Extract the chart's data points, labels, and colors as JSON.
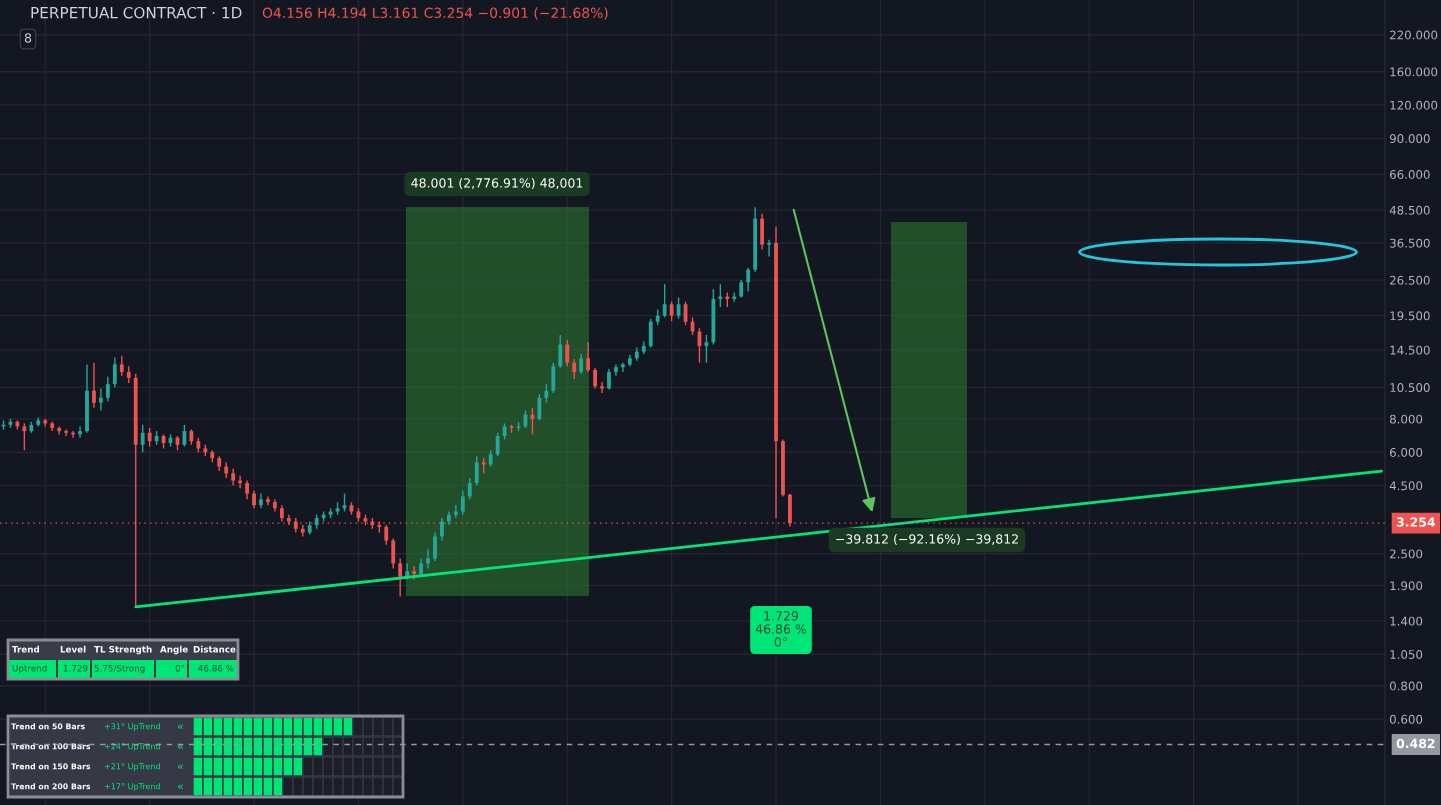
{
  "chart_data": {
    "type": "candlestick",
    "title": "PERPETUAL CONTRACT · 1D",
    "log": true,
    "grid": true,
    "tick_labels": "y",
    "ylim": [
      0.286,
      297
    ],
    "yticks": [
      {
        "value": 0.6,
        "label": "0.600"
      },
      {
        "value": 0.8,
        "label": "0.800"
      },
      {
        "value": 1.05,
        "label": "1.050"
      },
      {
        "value": 1.4,
        "label": "1.400"
      },
      {
        "value": 1.9,
        "label": "1.900"
      },
      {
        "value": 2.5,
        "label": "2.500"
      },
      {
        "value": 4.5,
        "label": "4.500"
      },
      {
        "value": 6,
        "label": "6.000"
      },
      {
        "value": 8,
        "label": "8.000"
      },
      {
        "value": 10.5,
        "label": "10.500"
      },
      {
        "value": 14.5,
        "label": "14.500"
      },
      {
        "value": 19.5,
        "label": "19.500"
      },
      {
        "value": 26.5,
        "label": "26.500"
      },
      {
        "value": 36.5,
        "label": "36.500"
      },
      {
        "value": 48.5,
        "label": "48.500"
      },
      {
        "value": 66,
        "label": "66.000"
      },
      {
        "value": 90,
        "label": "90.000"
      },
      {
        "value": 120,
        "label": "120.000"
      },
      {
        "value": 160,
        "label": "160.000"
      },
      {
        "value": 220,
        "label": "220.000"
      }
    ],
    "colors": [
      "#26a69a",
      "#26a69a",
      "#ef5350",
      "#ef5350",
      "#26a69a",
      "#26a69a",
      "#ef5350",
      "#ef5350",
      "#ef5350",
      "#ef5350",
      "#ef5350",
      "#26a69a",
      "#26a69a",
      "#ef5350",
      "#26a69a",
      "#26a69a",
      "#26a69a",
      "#ef5350",
      "#ef5350",
      "#ef5350",
      "#26a69a",
      "#ef5350",
      "#26a69a",
      "#ef5350",
      "#26a69a",
      "#ef5350",
      "#26a69a",
      "#ef5350",
      "#ef5350",
      "#ef5350",
      "#ef5350",
      "#ef5350",
      "#ef5350",
      "#ef5350",
      "#ef5350",
      "#ef5350",
      "#ef5350",
      "#26a69a",
      "#ef5350",
      "#ef5350",
      "#ef5350",
      "#ef5350",
      "#ef5350",
      "#ef5350",
      "#26a69a",
      "#26a69a",
      "#26a69a",
      "#26a69a",
      "#26a69a",
      "#26a69a",
      "#ef5350",
      "#ef5350",
      "#ef5350",
      "#ef5350",
      "#ef5350",
      "#ef5350",
      "#ef5350",
      "#ef5350",
      "#26a69a",
      "#ef5350",
      "#26a69a",
      "#26a69a",
      "#26a69a",
      "#26a69a",
      "#26a69a",
      "#26a69a",
      "#26a69a",
      "#26a69a",
      "#26a69a",
      "#ef5350",
      "#26a69a",
      "#26a69a",
      "#26a69a",
      "#ef5350",
      "#26a69a",
      "#26a69a",
      "#ef5350",
      "#26a69a",
      "#26a69a",
      "#26a69a",
      "#26a69a",
      "#ef5350",
      "#ef5350",
      "#26a69a",
      "#ef5350",
      "#ef5350",
      "#ef5350",
      "#26a69a",
      "#26a69a",
      "#26a69a",
      "#26a69a",
      "#26a69a",
      "#26a69a",
      "#26a69a",
      "#26a69a",
      "#26a69a",
      "#ef5350",
      "#26a69a",
      "#ef5350",
      "#ef5350",
      "#ef5350",
      "#26a69a",
      "#26a69a",
      "#26a69a",
      "#ef5350",
      "#26a69a",
      "#26a69a",
      "#26a69a",
      "#26a69a",
      "#ef5350",
      "#26a69a",
      "#ef5350",
      "#ef5350",
      "#ef5350",
      null,
      null,
      null,
      null,
      null,
      null,
      null,
      null,
      null,
      null,
      null,
      null,
      null,
      null,
      null,
      null,
      null,
      null,
      null,
      null,
      null,
      null,
      null,
      null,
      null,
      null,
      null,
      null,
      null,
      null,
      null,
      null,
      null,
      null,
      null,
      null,
      null,
      null,
      null,
      null,
      null,
      null,
      null,
      null,
      null,
      null,
      null,
      null,
      null,
      null,
      null,
      null,
      null,
      null,
      null,
      null,
      null,
      null,
      null,
      null,
      null,
      null,
      null,
      null,
      null,
      null,
      null,
      null,
      null,
      null,
      null,
      null,
      null,
      null,
      null,
      null,
      null,
      null,
      null,
      null,
      null,
      null,
      null,
      null,
      null
    ],
    "categories": [
      null,
      null,
      null,
      null,
      null,
      null,
      null,
      null,
      null,
      null,
      null,
      null,
      null,
      null,
      null,
      null,
      null,
      null,
      null,
      null,
      null,
      null,
      null,
      null,
      null,
      null,
      null,
      null,
      null,
      null,
      null,
      null,
      null,
      null,
      null,
      null,
      null,
      null,
      null,
      null,
      null,
      null,
      null,
      null,
      null,
      null,
      null,
      null,
      null,
      null,
      null,
      null,
      null,
      null,
      null,
      null,
      null,
      null,
      null,
      null,
      null,
      null,
      null,
      null,
      null,
      null,
      null,
      null,
      null,
      null,
      null,
      null,
      null,
      null,
      null,
      null,
      null,
      null,
      null,
      null,
      null,
      null,
      null,
      null,
      null,
      null,
      null,
      null,
      null,
      null,
      null,
      null,
      null,
      null,
      null,
      null,
      null,
      null,
      null,
      null,
      null,
      null,
      null,
      null,
      null,
      null,
      null,
      null,
      null,
      null,
      null,
      null,
      null,
      null,
      null,
      null,
      null,
      null,
      null,
      null,
      null,
      null,
      null,
      null,
      null,
      null,
      null,
      null,
      null,
      null,
      null,
      null,
      null,
      null,
      null,
      null,
      null,
      null,
      null,
      null,
      null,
      null,
      null,
      null,
      null,
      null,
      null,
      null,
      null,
      null,
      null,
      null,
      null,
      null,
      null,
      null,
      null,
      null,
      null,
      null,
      null,
      null,
      null,
      null,
      null,
      null,
      null,
      null,
      null,
      null,
      null,
      null,
      null,
      null,
      null,
      null,
      null,
      null,
      null,
      null,
      null,
      null,
      null,
      null,
      null,
      null,
      null,
      null,
      null,
      null,
      null,
      null,
      null,
      null,
      null,
      null,
      null,
      null,
      null
    ],
    "ohlc": [
      [
        7.5,
        7.9,
        7.3,
        7.6
      ],
      [
        7.6,
        8.0,
        7.4,
        7.8
      ],
      [
        7.8,
        7.9,
        7.3,
        7.5
      ],
      [
        7.5,
        7.7,
        6.1,
        7.2
      ],
      [
        7.2,
        7.8,
        7.1,
        7.6
      ],
      [
        7.6,
        8.1,
        7.5,
        7.9
      ],
      [
        7.9,
        8.0,
        7.5,
        7.7
      ],
      [
        7.7,
        7.8,
        7.2,
        7.4
      ],
      [
        7.4,
        7.5,
        7.0,
        7.2
      ],
      [
        7.2,
        7.3,
        6.9,
        7.1
      ],
      [
        7.1,
        7.2,
        6.8,
        7.0
      ],
      [
        7.0,
        7.5,
        6.8,
        7.2
      ],
      [
        7.2,
        12.8,
        7.1,
        10.2
      ],
      [
        10.2,
        13.0,
        8.8,
        9.2
      ],
      [
        9.2,
        10.4,
        8.6,
        9.6
      ],
      [
        9.6,
        11.5,
        9.3,
        10.8
      ],
      [
        10.8,
        13.6,
        10.5,
        12.8
      ],
      [
        12.8,
        13.8,
        11.6,
        12.0
      ],
      [
        12.0,
        12.6,
        10.9,
        11.4
      ],
      [
        11.4,
        11.8,
        1.58,
        6.4
      ],
      [
        6.4,
        7.6,
        6.0,
        7.1
      ],
      [
        7.1,
        7.4,
        6.3,
        6.6
      ],
      [
        6.6,
        7.2,
        6.4,
        6.9
      ],
      [
        6.9,
        7.0,
        6.2,
        6.5
      ],
      [
        6.5,
        7.0,
        6.3,
        6.8
      ],
      [
        6.8,
        6.9,
        6.1,
        6.4
      ],
      [
        6.4,
        7.6,
        6.3,
        7.2
      ],
      [
        7.2,
        7.3,
        6.4,
        6.6
      ],
      [
        6.6,
        6.8,
        6.0,
        6.2
      ],
      [
        6.2,
        6.4,
        5.8,
        6.0
      ],
      [
        6.0,
        6.1,
        5.5,
        5.7
      ],
      [
        5.7,
        5.8,
        5.1,
        5.3
      ],
      [
        5.3,
        5.5,
        4.8,
        5.0
      ],
      [
        5.0,
        5.2,
        4.5,
        4.7
      ],
      [
        4.7,
        4.9,
        4.4,
        4.6
      ],
      [
        4.6,
        4.7,
        4.0,
        4.2
      ],
      [
        4.2,
        4.3,
        3.7,
        3.8
      ],
      [
        3.8,
        4.2,
        3.7,
        4.0
      ],
      [
        4.0,
        4.1,
        3.8,
        3.9
      ],
      [
        3.9,
        4.0,
        3.6,
        3.7
      ],
      [
        3.7,
        3.8,
        3.3,
        3.4
      ],
      [
        3.4,
        3.5,
        3.2,
        3.3
      ],
      [
        3.3,
        3.4,
        3.0,
        3.1
      ],
      [
        3.1,
        3.2,
        2.9,
        3.0
      ],
      [
        3.0,
        3.3,
        2.95,
        3.2
      ],
      [
        3.2,
        3.5,
        3.1,
        3.4
      ],
      [
        3.4,
        3.6,
        3.3,
        3.5
      ],
      [
        3.5,
        3.7,
        3.4,
        3.6
      ],
      [
        3.6,
        3.9,
        3.5,
        3.7
      ],
      [
        3.7,
        4.2,
        3.6,
        3.8
      ],
      [
        3.8,
        3.9,
        3.5,
        3.6
      ],
      [
        3.6,
        3.7,
        3.3,
        3.4
      ],
      [
        3.4,
        3.5,
        3.2,
        3.3
      ],
      [
        3.3,
        3.4,
        3.1,
        3.2
      ],
      [
        3.2,
        3.3,
        3.0,
        3.15
      ],
      [
        3.15,
        3.2,
        2.7,
        2.8
      ],
      [
        2.8,
        2.85,
        2.2,
        2.3
      ],
      [
        2.3,
        2.4,
        1.729,
        2.05
      ],
      [
        2.05,
        2.3,
        2.0,
        2.15
      ],
      [
        2.15,
        2.25,
        2.0,
        2.1
      ],
      [
        2.1,
        2.4,
        2.05,
        2.3
      ],
      [
        2.3,
        2.6,
        2.2,
        2.4
      ],
      [
        2.4,
        3.0,
        2.35,
        2.9
      ],
      [
        2.9,
        3.4,
        2.8,
        3.3
      ],
      [
        3.3,
        3.6,
        3.2,
        3.5
      ],
      [
        3.5,
        3.8,
        3.4,
        3.6
      ],
      [
        3.6,
        4.3,
        3.5,
        4.1
      ],
      [
        4.1,
        4.8,
        4.0,
        4.6
      ],
      [
        4.6,
        5.8,
        4.5,
        5.5
      ],
      [
        5.5,
        5.7,
        5.0,
        5.4
      ],
      [
        5.4,
        6.1,
        5.3,
        5.9
      ],
      [
        5.9,
        7.1,
        5.8,
        6.9
      ],
      [
        6.9,
        7.7,
        6.7,
        7.5
      ],
      [
        7.5,
        7.6,
        7.1,
        7.4
      ],
      [
        7.4,
        7.8,
        7.2,
        7.5
      ],
      [
        7.5,
        8.6,
        7.4,
        8.3
      ],
      [
        8.3,
        8.8,
        7.0,
        8.0
      ],
      [
        8.0,
        9.9,
        7.9,
        9.6
      ],
      [
        9.6,
        10.8,
        9.2,
        10.2
      ],
      [
        10.2,
        13.0,
        10.0,
        12.6
      ],
      [
        12.6,
        16.5,
        12.4,
        15.2
      ],
      [
        15.2,
        15.8,
        12.6,
        13.0
      ],
      [
        13.0,
        13.4,
        11.3,
        12.0
      ],
      [
        12.0,
        14.0,
        11.8,
        13.5
      ],
      [
        13.5,
        15.5,
        12.0,
        12.2
      ],
      [
        12.2,
        12.4,
        10.4,
        10.6
      ],
      [
        10.6,
        11.0,
        10.0,
        10.4
      ],
      [
        10.4,
        12.3,
        10.3,
        12.0
      ],
      [
        12.0,
        12.8,
        11.6,
        12.5
      ],
      [
        12.5,
        13.0,
        12.0,
        12.8
      ],
      [
        12.8,
        13.9,
        12.6,
        13.5
      ],
      [
        13.5,
        14.8,
        13.2,
        14.3
      ],
      [
        14.3,
        15.6,
        14.0,
        15.0
      ],
      [
        15.0,
        19.0,
        14.8,
        18.5
      ],
      [
        18.5,
        20.5,
        18.0,
        19.5
      ],
      [
        19.5,
        25.6,
        19.2,
        21.5
      ],
      [
        21.5,
        22.0,
        18.6,
        19.5
      ],
      [
        19.5,
        22.8,
        19.0,
        21.5
      ],
      [
        21.5,
        22.0,
        18.0,
        18.5
      ],
      [
        18.5,
        19.2,
        16.5,
        17.0
      ],
      [
        17.0,
        17.5,
        13.0,
        15.0
      ],
      [
        15.0,
        16.5,
        13.0,
        15.5
      ],
      [
        15.5,
        24.5,
        15.2,
        22.5
      ],
      [
        22.5,
        25.6,
        21.0,
        23.0
      ],
      [
        23.0,
        23.8,
        21.0,
        22.5
      ],
      [
        22.5,
        23.8,
        22.0,
        23.0
      ],
      [
        23.0,
        26.5,
        22.8,
        26.0
      ],
      [
        26.0,
        29.5,
        24.0,
        29.0
      ],
      [
        29.0,
        49.73,
        28.5,
        45.0
      ],
      [
        45.0,
        47.0,
        34.5,
        36.0
      ],
      [
        36.0,
        37.5,
        32.5,
        36.5
      ],
      [
        36.5,
        42.0,
        3.4,
        6.6
      ],
      [
        6.6,
        6.7,
        4.1,
        4.155
      ],
      [
        4.156,
        4.194,
        3.161,
        3.254
      ],
      null,
      null,
      null,
      null,
      null,
      null,
      null,
      null,
      null,
      null,
      null,
      null,
      null,
      null,
      null,
      null,
      null,
      null,
      null,
      null,
      null,
      null,
      null,
      null,
      null,
      null,
      null,
      null,
      null,
      null,
      null,
      null,
      null,
      null,
      null,
      null,
      null,
      null,
      null,
      null,
      null,
      null,
      null,
      null,
      null,
      null,
      null,
      null,
      null,
      null,
      null,
      null,
      null,
      null,
      null,
      null,
      null,
      null,
      null,
      null,
      null,
      null,
      null,
      null,
      null,
      null,
      null,
      null,
      null,
      null,
      null,
      null,
      null,
      null,
      null,
      null,
      null,
      null,
      null,
      null,
      null,
      null,
      null,
      null,
      null
    ],
    "series": [
      {
        "type": "line",
        "color": "#00e676",
        "values": [
          null,
          null,
          null,
          null,
          null,
          null,
          null,
          null,
          null,
          null,
          null,
          null,
          null,
          null,
          null,
          null,
          null,
          null,
          null,
          1.58,
          null,
          null,
          null,
          null,
          null,
          null,
          null,
          null,
          null,
          null,
          null,
          null,
          null,
          null,
          null,
          null,
          null,
          null,
          null,
          null,
          null,
          null,
          null,
          null,
          null,
          null,
          null,
          null,
          null,
          null,
          null,
          null,
          null,
          null,
          null,
          null,
          null,
          null,
          null,
          null,
          null,
          null,
          null,
          null,
          null,
          null,
          null,
          null,
          null,
          null,
          null,
          null,
          null,
          null,
          null,
          null,
          null,
          null,
          null,
          null,
          null,
          null,
          null,
          null,
          null,
          null,
          null,
          null,
          null,
          null,
          null,
          null,
          null,
          null,
          null,
          null,
          null,
          null,
          null,
          null,
          null,
          null,
          null,
          null,
          null,
          null,
          null,
          null,
          null,
          null,
          null,
          null,
          null,
          null,
          null,
          null,
          null,
          null,
          null,
          null,
          null,
          null,
          null,
          null,
          null,
          null,
          null,
          null,
          null,
          null,
          null,
          null,
          null,
          null,
          null,
          null,
          null,
          null,
          null,
          null,
          null,
          null,
          null,
          null,
          null,
          null,
          null,
          null,
          null,
          null,
          null,
          null,
          null,
          null,
          null,
          null,
          null,
          null,
          null,
          null,
          null,
          null,
          null,
          null,
          null,
          null,
          null,
          null,
          null,
          null,
          null,
          null,
          null,
          null,
          null,
          null,
          null,
          null,
          null,
          null,
          null,
          null,
          null,
          null,
          null,
          null,
          null,
          null,
          null,
          null,
          null,
          null,
          null,
          null,
          null,
          null,
          null,
          null,
          5.1
        ]
      }
    ],
    "ref_lines": [
      {
        "axis": "y",
        "value": 3.254,
        "label": "3.254",
        "color": "#ef5350",
        "line_style": "dotted"
      },
      {
        "axis": "y",
        "value": 0.482,
        "label": "0.482",
        "color": "#9598a1",
        "line_style": "dashed"
      }
    ],
    "annotations": [
      "8",
      "O4.156 H4.194 L3.161 C3.254 −0.901 (−21.68%)",
      "48.001 (2,776.91%) 48,001",
      "−39.812 (−92.16%) −39,812",
      "1.729\n46.86 %\n0°",
      "Trend",
      "Level",
      "TL Strength",
      "Angle",
      "Distance",
      "Uptrend",
      "1.729",
      "5.75/Strong",
      "0°",
      "46.86 %",
      "Trend on 50 Bars",
      "+31° UpTrend",
      "«",
      "Trend on 100 Bars",
      "+24° UpTrend",
      "«",
      "Trend on 150 Bars",
      "+21° UpTrend",
      "«",
      "Trend on 200 Bars",
      "+17° UpTrend",
      "«"
    ]
  }
}
